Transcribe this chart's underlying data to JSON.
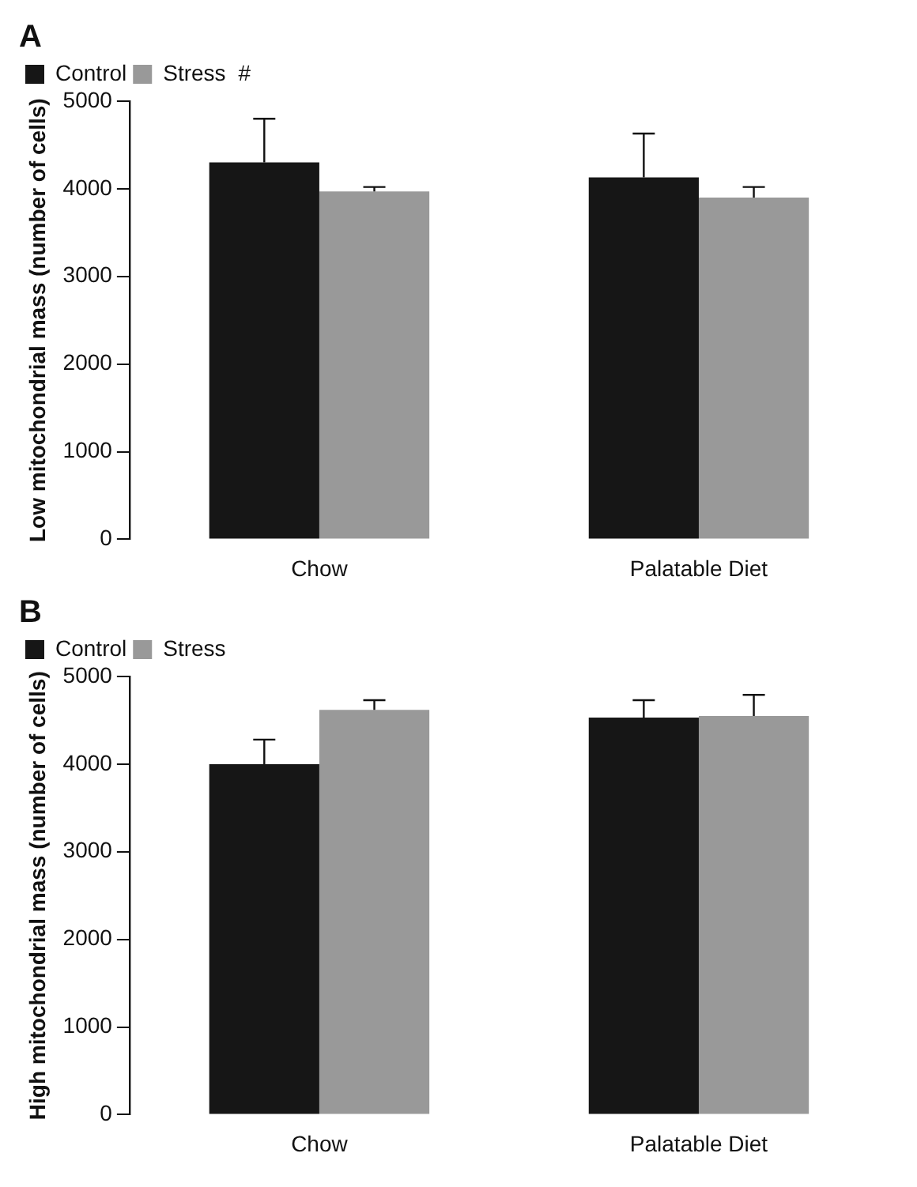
{
  "chart_data": [
    {
      "type": "bar",
      "title": "A",
      "ylabel": "Low mitochondrial mass (number of cells)",
      "categories": [
        "Chow",
        "Palatable Diet"
      ],
      "series": [
        {
          "name": "Control",
          "color": "#161616",
          "values": [
            4300,
            4130
          ],
          "errors": [
            [
              4300,
              4800
            ],
            [
              4130,
              4630
            ]
          ]
        },
        {
          "name": "Stress",
          "color": "#999999",
          "values": [
            3970,
            3900
          ],
          "errors": [
            [
              3970,
              4020
            ],
            [
              3900,
              4020
            ]
          ]
        }
      ],
      "annotations": [
        "#"
      ],
      "ylim": [
        0,
        5000
      ],
      "yticks": [
        0,
        1000,
        2000,
        3000,
        4000,
        5000
      ],
      "grid": false,
      "legend": "top left"
    },
    {
      "type": "bar",
      "title": "B",
      "ylabel": "High mitochondrial mass (number of cells)",
      "categories": [
        "Chow",
        "Palatable Diet"
      ],
      "series": [
        {
          "name": "Control",
          "color": "#161616",
          "values": [
            4000,
            4530
          ],
          "errors": [
            [
              4000,
              4280
            ],
            [
              4530,
              4730
            ]
          ]
        },
        {
          "name": "Stress",
          "color": "#999999",
          "values": [
            4620,
            4550
          ],
          "errors": [
            [
              4620,
              4730
            ],
            [
              4550,
              4790
            ]
          ]
        }
      ],
      "ylim": [
        0,
        5000
      ],
      "yticks": [
        0,
        1000,
        2000,
        3000,
        4000,
        5000
      ],
      "grid": false,
      "legend": "top left"
    }
  ]
}
